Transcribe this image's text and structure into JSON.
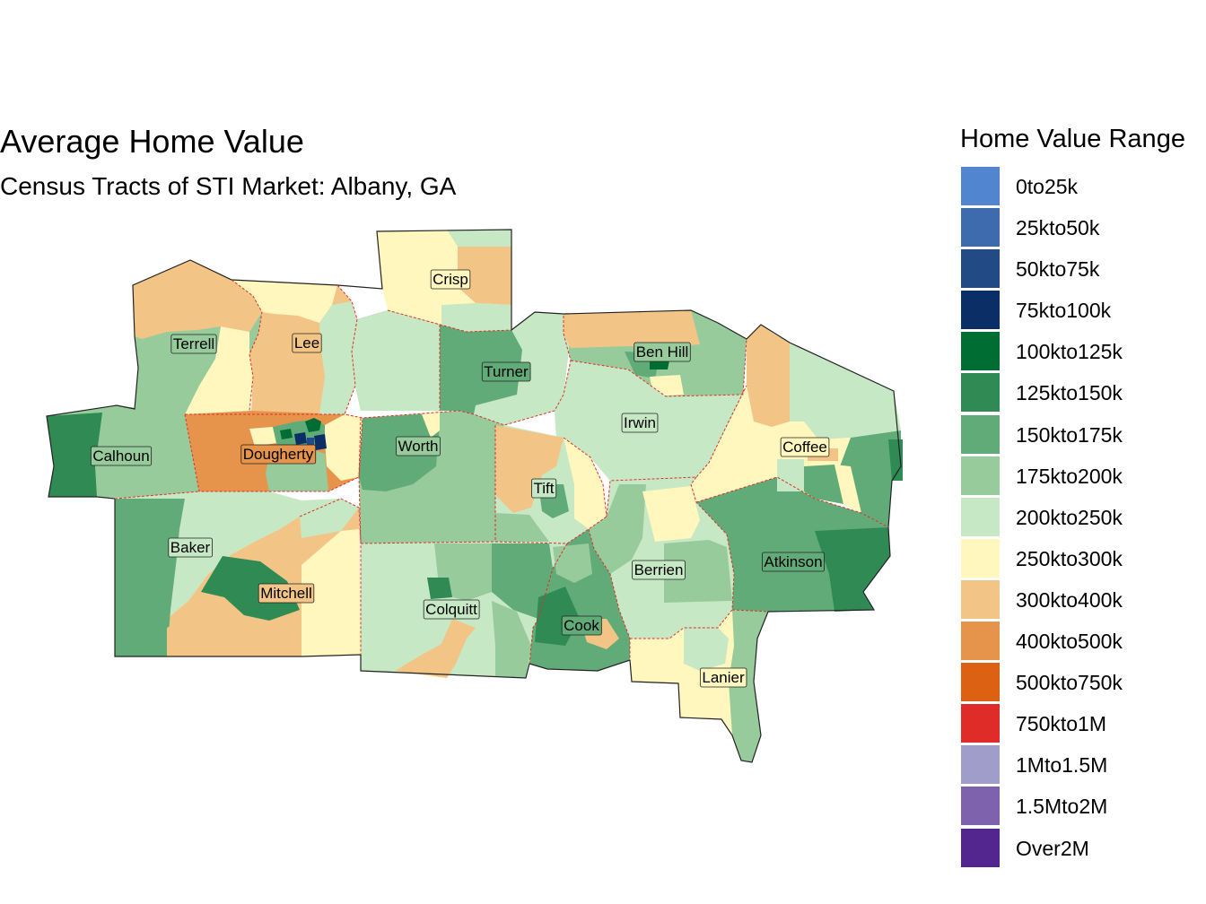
{
  "title": "Average Home Value",
  "subtitle": "Census Tracts of STI Market: Albany, GA",
  "legend": {
    "title": "Home Value Range",
    "items": [
      {
        "label": "0to25k",
        "color": "#5285cf"
      },
      {
        "label": "25kto50k",
        "color": "#3e6bad"
      },
      {
        "label": "50kto75k",
        "color": "#224b86"
      },
      {
        "label": "75kto100k",
        "color": "#0b2e66"
      },
      {
        "label": "100kto125k",
        "color": "#006d32"
      },
      {
        "label": "125kto150k",
        "color": "#2f8a54"
      },
      {
        "label": "150kto175k",
        "color": "#61ab78"
      },
      {
        "label": "175kto200k",
        "color": "#97cb9b"
      },
      {
        "label": "200kto250k",
        "color": "#c7e8c4"
      },
      {
        "label": "250kto300k",
        "color": "#fff7bd"
      },
      {
        "label": "300kto400k",
        "color": "#f2c587"
      },
      {
        "label": "400kto500k",
        "color": "#e6944b"
      },
      {
        "label": "500kto750k",
        "color": "#dd6112"
      },
      {
        "label": "750kto1M",
        "color": "#df2c28"
      },
      {
        "label": "1Mto1.5M",
        "color": "#a19dcb"
      },
      {
        "label": "1.5Mto2M",
        "color": "#7e62ae"
      },
      {
        "label": "Over2M",
        "color": "#53258e"
      }
    ]
  },
  "map": {
    "boundary_color": "#e0302a",
    "counties": [
      {
        "id": "terrell",
        "name": "Terrell",
        "fill": "#97cb9b"
      },
      {
        "id": "lee",
        "name": "Lee",
        "fill": "#f2c587"
      },
      {
        "id": "crisp",
        "name": "Crisp",
        "fill": "#fff7bd"
      },
      {
        "id": "turner",
        "name": "Turner",
        "fill": "#61ab78"
      },
      {
        "id": "benhill",
        "name": "Ben Hill",
        "fill": "#97cb9b"
      },
      {
        "id": "calhoun",
        "name": "Calhoun",
        "fill": "#97cb9b"
      },
      {
        "id": "dougherty",
        "name": "Dougherty",
        "fill": "#e6944b"
      },
      {
        "id": "worth",
        "name": "Worth",
        "fill": "#97cb9b"
      },
      {
        "id": "irwin",
        "name": "Irwin",
        "fill": "#c7e8c4"
      },
      {
        "id": "coffee",
        "name": "Coffee",
        "fill": "#fff7bd"
      },
      {
        "id": "tift",
        "name": "Tift",
        "fill": "#c7e8c4"
      },
      {
        "id": "baker",
        "name": "Baker",
        "fill": "#c7e8c4"
      },
      {
        "id": "mitchell",
        "name": "Mitchell",
        "fill": "#f2c587"
      },
      {
        "id": "colquitt",
        "name": "Colquitt",
        "fill": "#c7e8c4"
      },
      {
        "id": "cook",
        "name": "Cook",
        "fill": "#61ab78"
      },
      {
        "id": "berrien",
        "name": "Berrien",
        "fill": "#c7e8c4"
      },
      {
        "id": "atkinson",
        "name": "Atkinson",
        "fill": "#61ab78"
      },
      {
        "id": "lanier",
        "name": "Lanier",
        "fill": "#fff7bd"
      }
    ]
  }
}
